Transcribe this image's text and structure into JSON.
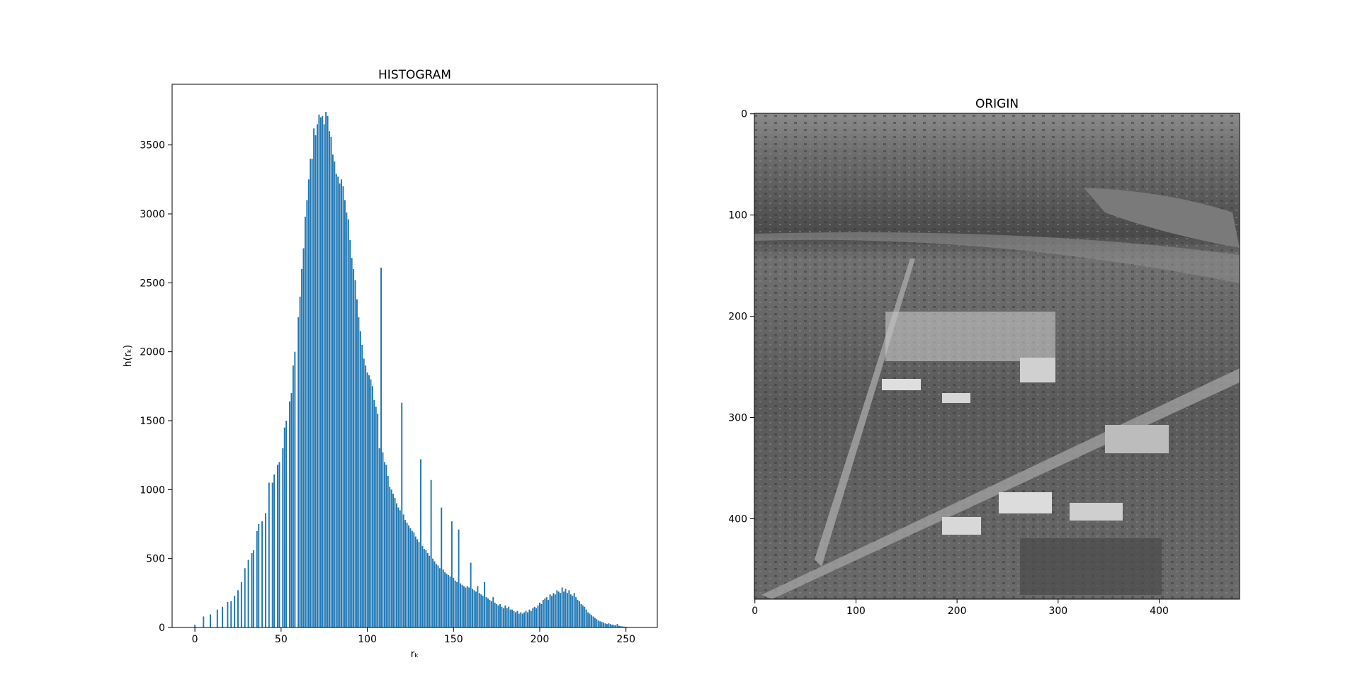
{
  "chart_data": [
    {
      "type": "bar",
      "title": "HISTOGRAM",
      "xlabel": "rₖ",
      "ylabel": "h(rₖ)",
      "color": "#1f77b4",
      "bar_width": 0.8,
      "x": [
        0,
        1,
        2,
        3,
        4,
        5,
        6,
        7,
        8,
        9,
        10,
        11,
        12,
        13,
        14,
        15,
        16,
        17,
        18,
        19,
        20,
        21,
        22,
        23,
        24,
        25,
        26,
        27,
        28,
        29,
        30,
        31,
        32,
        33,
        34,
        35,
        36,
        37,
        38,
        39,
        40,
        41,
        42,
        43,
        44,
        45,
        46,
        47,
        48,
        49,
        50,
        51,
        52,
        53,
        54,
        55,
        56,
        57,
        58,
        59,
        60,
        61,
        62,
        63,
        64,
        65,
        66,
        67,
        68,
        69,
        70,
        71,
        72,
        73,
        74,
        75,
        76,
        77,
        78,
        79,
        80,
        81,
        82,
        83,
        84,
        85,
        86,
        87,
        88,
        89,
        90,
        91,
        92,
        93,
        94,
        95,
        96,
        97,
        98,
        99,
        100,
        101,
        102,
        103,
        104,
        105,
        106,
        107,
        108,
        109,
        110,
        111,
        112,
        113,
        114,
        115,
        116,
        117,
        118,
        119,
        120,
        121,
        122,
        123,
        124,
        125,
        126,
        127,
        128,
        129,
        130,
        131,
        132,
        133,
        134,
        135,
        136,
        137,
        138,
        139,
        140,
        141,
        142,
        143,
        144,
        145,
        146,
        147,
        148,
        149,
        150,
        151,
        152,
        153,
        154,
        155,
        156,
        157,
        158,
        159,
        160,
        161,
        162,
        163,
        164,
        165,
        166,
        167,
        168,
        169,
        170,
        171,
        172,
        173,
        174,
        175,
        176,
        177,
        178,
        179,
        180,
        181,
        182,
        183,
        184,
        185,
        186,
        187,
        188,
        189,
        190,
        191,
        192,
        193,
        194,
        195,
        196,
        197,
        198,
        199,
        200,
        201,
        202,
        203,
        204,
        205,
        206,
        207,
        208,
        209,
        210,
        211,
        212,
        213,
        214,
        215,
        216,
        217,
        218,
        219,
        220,
        221,
        222,
        223,
        224,
        225,
        226,
        227,
        228,
        229,
        230,
        231,
        232,
        233,
        234,
        235,
        236,
        237,
        238,
        239,
        240,
        241,
        242,
        243,
        244,
        245,
        246,
        247,
        248,
        249,
        250,
        251,
        252,
        253,
        254,
        255
      ],
      "values": [
        20,
        0,
        0,
        0,
        0,
        80,
        0,
        0,
        0,
        95,
        0,
        0,
        0,
        130,
        0,
        0,
        150,
        0,
        0,
        185,
        0,
        190,
        0,
        230,
        0,
        270,
        0,
        330,
        0,
        430,
        0,
        490,
        0,
        540,
        560,
        0,
        700,
        750,
        0,
        770,
        0,
        830,
        0,
        1050,
        0,
        1050,
        1110,
        0,
        1180,
        1200,
        0,
        1300,
        1450,
        1500,
        0,
        1640,
        1700,
        1900,
        2000,
        0,
        2250,
        2400,
        2600,
        2750,
        2980,
        3100,
        3250,
        3400,
        3400,
        3620,
        3570,
        3650,
        3720,
        3700,
        3710,
        3650,
        3740,
        3710,
        3600,
        3560,
        3430,
        3380,
        3290,
        3270,
        3220,
        3250,
        3200,
        3100,
        3010,
        2960,
        2810,
        2680,
        2600,
        2520,
        2380,
        2250,
        2150,
        2050,
        1950,
        1900,
        1850,
        1830,
        1800,
        1750,
        1650,
        1600,
        1550,
        1300,
        2610,
        1270,
        1200,
        1180,
        1100,
        1020,
        1000,
        970,
        940,
        900,
        870,
        850,
        1630,
        820,
        780,
        760,
        740,
        720,
        700,
        690,
        660,
        640,
        620,
        1220,
        590,
        570,
        560,
        540,
        520,
        1070,
        500,
        480,
        460,
        450,
        430,
        870,
        420,
        400,
        390,
        380,
        370,
        770,
        360,
        340,
        330,
        710,
        320,
        310,
        300,
        290,
        300,
        290,
        470,
        280,
        270,
        260,
        300,
        250,
        240,
        230,
        330,
        220,
        210,
        200,
        190,
        220,
        180,
        170,
        160,
        170,
        150,
        140,
        160,
        140,
        150,
        130,
        130,
        120,
        110,
        120,
        100,
        110,
        100,
        110,
        120,
        110,
        130,
        120,
        140,
        150,
        140,
        160,
        180,
        170,
        200,
        210,
        220,
        200,
        240,
        230,
        250,
        240,
        270,
        260,
        250,
        290,
        260,
        280,
        250,
        270,
        240,
        230,
        250,
        220,
        200,
        190,
        170,
        160,
        150,
        130,
        110,
        100,
        90,
        80,
        70,
        60,
        50,
        45,
        40,
        35,
        30,
        25,
        30,
        25,
        20,
        18,
        15,
        25,
        12,
        10,
        8,
        6,
        5,
        4,
        3,
        0,
        0,
        0
      ],
      "xlim": [
        -13.2,
        268.2
      ],
      "xticks": [
        0,
        50,
        100,
        150,
        200,
        250
      ],
      "ylim": [
        0,
        3940
      ],
      "yticks": [
        0,
        500,
        1000,
        1500,
        2000,
        2500,
        3000,
        3500
      ]
    },
    {
      "type": "image",
      "title": "ORIGIN",
      "xlim": [
        -0.5,
        479.5
      ],
      "xticks": [
        0,
        100,
        200,
        300,
        400
      ],
      "ylim": [
        479.5,
        -0.5
      ],
      "yticks": [
        0,
        100,
        200,
        300,
        400
      ]
    }
  ]
}
